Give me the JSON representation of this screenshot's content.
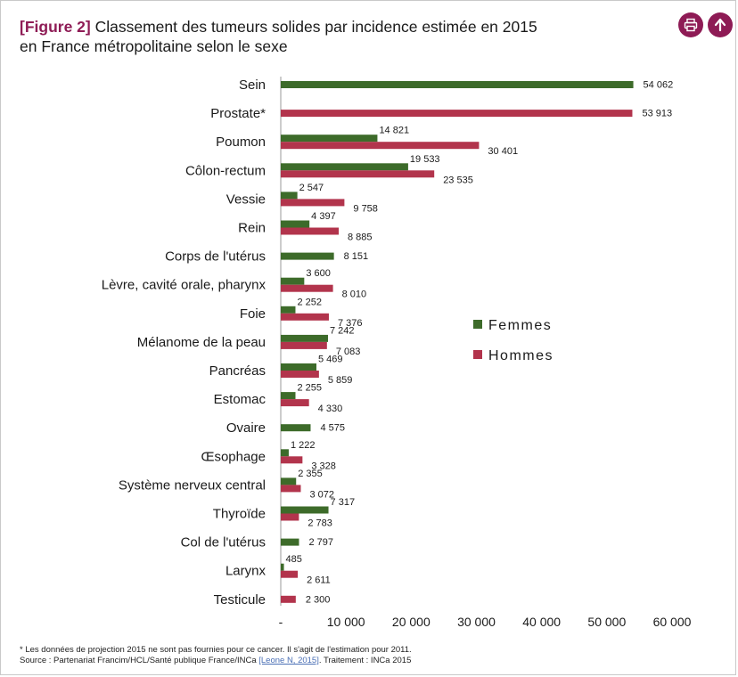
{
  "header": {
    "figure_tag": "[Figure 2]",
    "title_line1": "Classement des tumeurs solides par incidence estimée en 2015",
    "title_line2": "en France métropolitaine selon le sexe"
  },
  "colors": {
    "femmes": "#3d6b2a",
    "hommes": "#b2344c",
    "accent": "#8e1b55",
    "axis": "#999999"
  },
  "icons": {
    "print": "print-icon",
    "up": "arrow-up-icon"
  },
  "chart_data": {
    "type": "bar",
    "orientation": "horizontal",
    "categories": [
      "Sein",
      "Prostate*",
      "Poumon",
      "Côlon-rectum",
      "Vessie",
      "Rein",
      "Corps de l'utérus",
      "Lèvre, cavité orale, pharynx",
      "Foie",
      "Mélanome de la peau",
      "Pancréas",
      "Estomac",
      "Ovaire",
      "Œsophage",
      "Système nerveux central",
      "Thyroïde",
      "Col de l'utérus",
      "Larynx",
      "Testicule"
    ],
    "series": [
      {
        "name": "Femmes",
        "values": [
          54062,
          null,
          14821,
          19533,
          2547,
          4397,
          8151,
          3600,
          2252,
          7242,
          5469,
          2255,
          4575,
          1222,
          2355,
          7317,
          2797,
          485,
          null
        ],
        "labels": [
          "54 062",
          "",
          "14 821",
          "19 533",
          "2 547",
          "4 397",
          "8 151",
          "3 600",
          "2 252",
          "7 242",
          "5 469",
          "2 255",
          "4 575",
          "1 222",
          "2 355",
          "7 317",
          "2 797",
          "485",
          ""
        ]
      },
      {
        "name": "Hommes",
        "values": [
          null,
          53913,
          30401,
          23535,
          9758,
          8885,
          null,
          8010,
          7376,
          7083,
          5859,
          4330,
          null,
          3328,
          3072,
          2783,
          null,
          2611,
          2300
        ],
        "labels": [
          "",
          "53 913",
          "30 401",
          "23 535",
          "9 758",
          "8 885",
          "",
          "8 010",
          "7 376",
          "7 083",
          "5 859",
          "4 330",
          "",
          "3 328",
          "3 072",
          "2 783",
          "",
          "2 611",
          "2 300"
        ]
      }
    ],
    "xlim": [
      0,
      60000
    ],
    "xticks": [
      0,
      10000,
      20000,
      30000,
      40000,
      50000,
      60000
    ],
    "xtick_labels": [
      "-",
      "10 000",
      "20 000",
      "30 000",
      "40 000",
      "50 000",
      "60 000"
    ],
    "legend_position": "right-middle",
    "grid": false
  },
  "footnotes": {
    "note": "* Les données de projection 2015 ne sont pas fournies pour ce cancer. Il s'agit de l'estimation pour 2011.",
    "source_prefix": "Source : Partenariat Francim/HCL/Santé publique France/INCa ",
    "source_link": "[Leone N, 2015]",
    "source_suffix": ". Traitement : INCa 2015"
  }
}
